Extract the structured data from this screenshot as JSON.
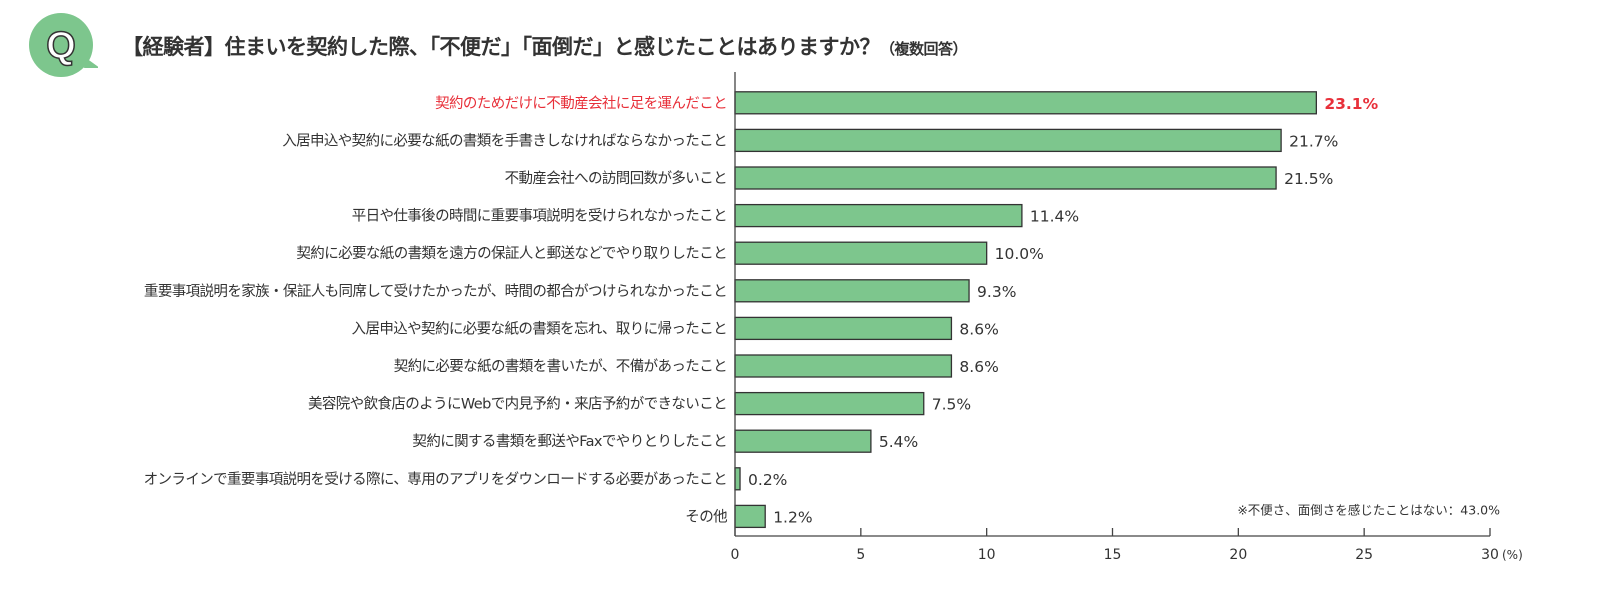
{
  "title": "【経験者】住まいを契約した際、「不便だ」「面倒だ」と感じたことはありますか？",
  "title_suffix": "（複数回答）",
  "q_badge": "Q",
  "colors": {
    "bar": "#7dc68d",
    "bar_stroke": "#333333",
    "highlight": "#e8303a",
    "text": "#333333",
    "badge": "#7dc68d"
  },
  "chart_data": {
    "type": "bar",
    "orientation": "horizontal",
    "categories": [
      "契約のためだけに不動産会社に足を運んだこと",
      "入居申込や契約に必要な紙の書類を手書きしなければならなかったこと",
      "不動産会社への訪問回数が多いこと",
      "平日や仕事後の時間に重要事項説明を受けられなかったこと",
      "契約に必要な紙の書類を遠方の保証人と郵送などでやり取りしたこと",
      "重要事項説明を家族・保証人も同席して受けたかったが、時間の都合がつけられなかったこと",
      "入居申込や契約に必要な紙の書類を忘れ、取りに帰ったこと",
      "契約に必要な紙の書類を書いたが、不備があったこと",
      "美容院や飲食店のようにWebで内見予約・来店予約ができないこと",
      "契約に関する書類を郵送やFaxでやりとりしたこと",
      "オンラインで重要事項説明を受ける際に、専用のアプリをダウンロードする必要があったこと",
      "その他"
    ],
    "values": [
      23.1,
      21.7,
      21.5,
      11.4,
      10.0,
      9.3,
      8.6,
      8.6,
      7.5,
      5.4,
      0.2,
      1.2
    ],
    "value_labels": [
      "23.1%",
      "21.7%",
      "21.5%",
      "11.4%",
      "10.0%",
      "9.3%",
      "8.6%",
      "8.6%",
      "7.5%",
      "5.4%",
      "0.2%",
      "1.2%"
    ],
    "highlight_index": 0,
    "xlim": [
      0,
      30
    ],
    "xticks": [
      "0",
      "5",
      "10",
      "15",
      "20",
      "25",
      "30"
    ],
    "xunit": "(%)",
    "grid": false,
    "annotation": "※不便さ、面倒さを感じたことはない：43.0%"
  }
}
